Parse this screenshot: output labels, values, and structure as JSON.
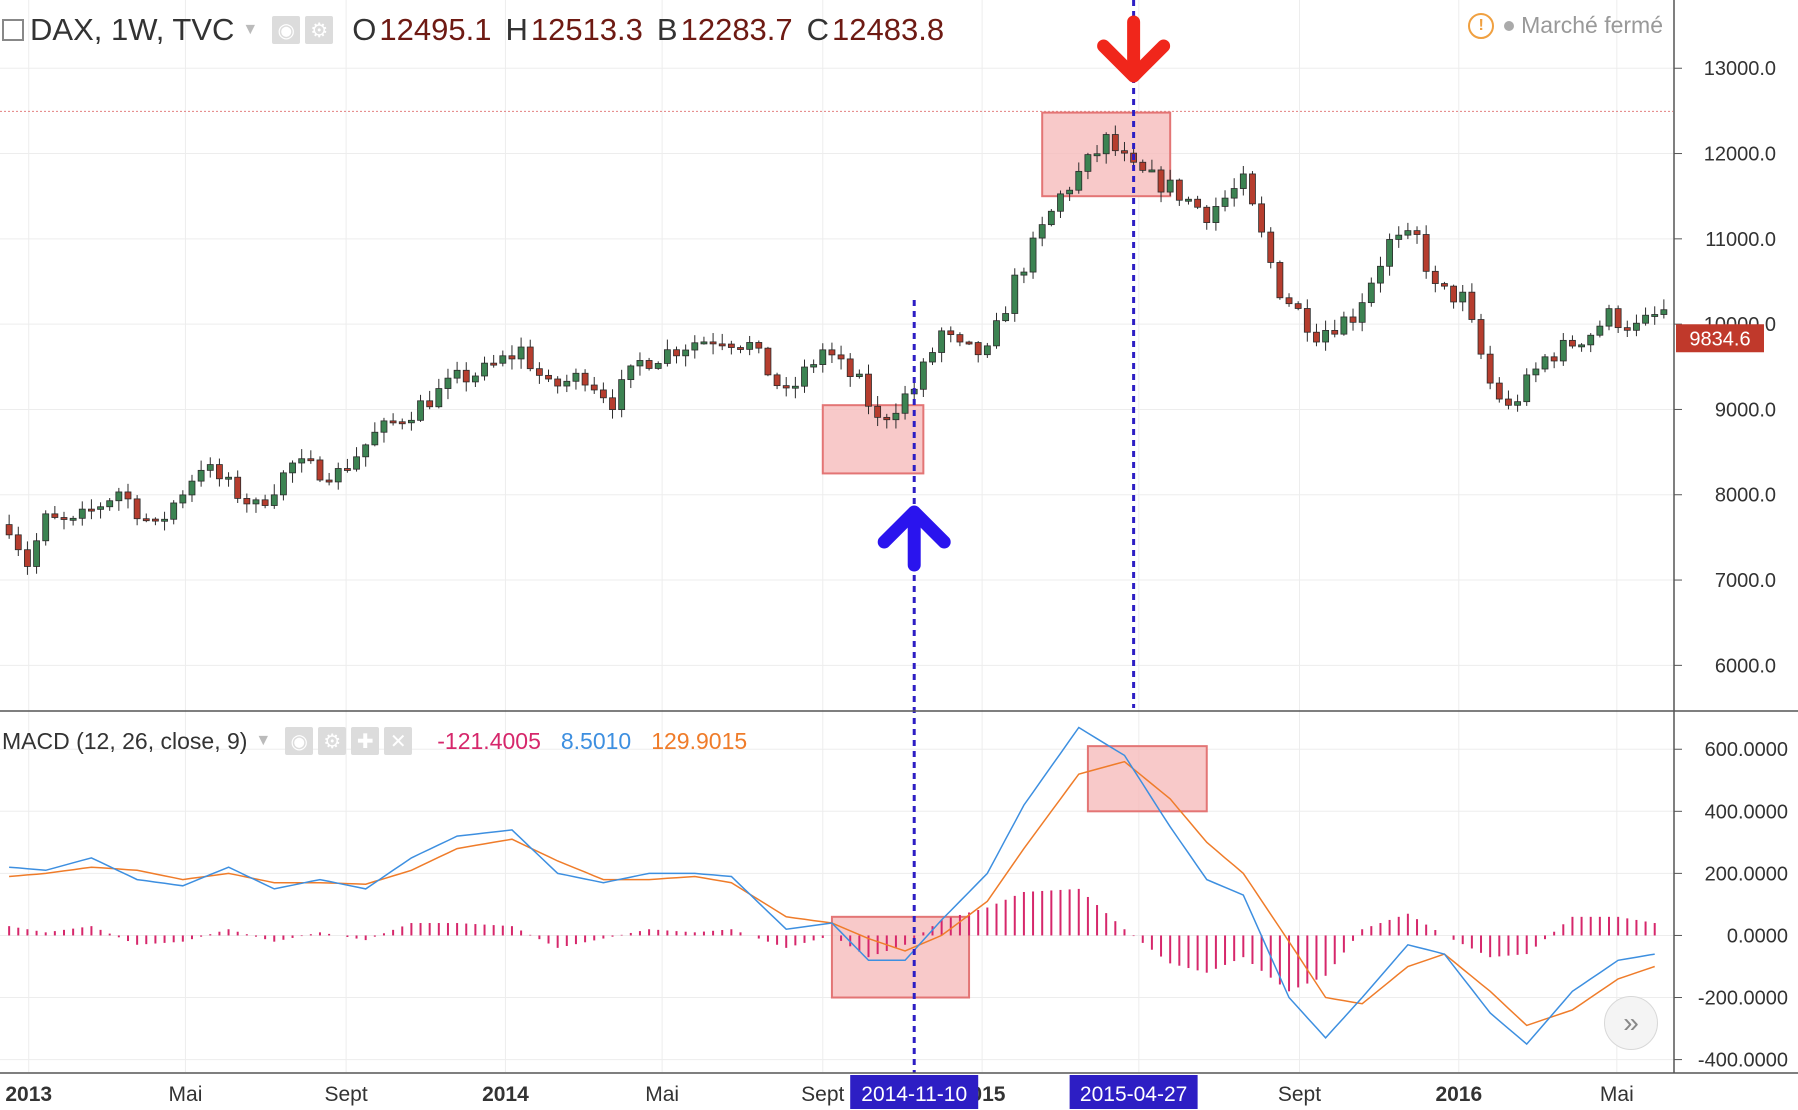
{
  "header": {
    "symbol": "DAX, 1W, TVC",
    "ohlc": [
      {
        "key": "O",
        "value": "12495.1"
      },
      {
        "key": "H",
        "value": "12513.3"
      },
      {
        "key": "B",
        "value": "12283.7"
      },
      {
        "key": "C",
        "value": "12483.8"
      }
    ],
    "status": "Marché fermé",
    "icons": [
      "square-icon",
      "chevron-down-icon",
      "eye-icon",
      "gear-icon",
      "warning-icon"
    ]
  },
  "macd_header": {
    "label": "MACD (12, 26, close, 9)",
    "values": [
      {
        "value": "-121.4005",
        "color": "#d6276b"
      },
      {
        "value": "8.5010",
        "color": "#3d8fe0"
      },
      {
        "value": "129.9015",
        "color": "#ef7c2a"
      }
    ],
    "icons": [
      "chevron-down-icon",
      "eye-icon",
      "gear-icon",
      "plus-icon",
      "close-icon"
    ]
  },
  "colors": {
    "up": "#3c8352",
    "down": "#b63d2e",
    "macd_line": "#3d8fe0",
    "signal_line": "#ef7c2a",
    "histogram": "#d6276b",
    "marker": "#2d1ec4",
    "zone_fill": "#f5b7b7",
    "zone_stroke": "#e37575",
    "buy_arrow": "#2a14ee",
    "sell_arrow": "#f0261b",
    "last_price": "#c0392b"
  },
  "chart_data": [
    {
      "type": "candlestick",
      "title": "DAX, 1W, TVC",
      "price_axis_ticks": [
        "13000.0",
        "12000.0",
        "11000.0",
        "10000.0",
        "9000.0",
        "8000.0",
        "7000.0",
        "6000.0"
      ],
      "ylim": [
        5500,
        13800
      ],
      "time_axis_labels": [
        "2013",
        "Mai",
        "Sept",
        "2014",
        "Mai",
        "Sept",
        "2015",
        "Mai",
        "Sept",
        "2016",
        "Mai"
      ],
      "last_price_label": "9834.6",
      "reference_level": 12495,
      "close_path": [
        [
          "2012-12-17",
          7650
        ],
        [
          "2012-12-31",
          7200
        ],
        [
          "2013-01-14",
          7700
        ],
        [
          "2013-02-04",
          7650
        ],
        [
          "2013-03-11",
          8050
        ],
        [
          "2013-04-08",
          7600
        ],
        [
          "2013-05-13",
          8350
        ],
        [
          "2013-06-24",
          7850
        ],
        [
          "2013-07-22",
          8350
        ],
        [
          "2013-08-26",
          8250
        ],
        [
          "2013-09-23",
          8700
        ],
        [
          "2013-10-28",
          9050
        ],
        [
          "2013-11-25",
          9350
        ],
        [
          "2013-12-16",
          9450
        ],
        [
          "2014-01-13",
          9700
        ],
        [
          "2014-02-03",
          9250
        ],
        [
          "2014-03-03",
          9400
        ],
        [
          "2014-03-24",
          9100
        ],
        [
          "2014-04-14",
          9550
        ],
        [
          "2014-05-26",
          9800
        ],
        [
          "2014-06-16",
          9850
        ],
        [
          "2014-07-07",
          9750
        ],
        [
          "2014-08-04",
          9150
        ],
        [
          "2014-09-01",
          9700
        ],
        [
          "2014-09-29",
          9300
        ],
        [
          "2014-10-13",
          8850
        ],
        [
          "2014-11-10",
          9250
        ],
        [
          "2014-12-01",
          9900
        ],
        [
          "2014-12-15",
          9700
        ],
        [
          "2015-01-05",
          9650
        ],
        [
          "2015-01-26",
          10500
        ],
        [
          "2015-03-02",
          11500
        ],
        [
          "2015-04-06",
          12150
        ],
        [
          "2015-04-27",
          11800
        ],
        [
          "2015-05-25",
          11600
        ],
        [
          "2015-06-22",
          11300
        ],
        [
          "2015-07-20",
          11650
        ],
        [
          "2015-08-17",
          10400
        ],
        [
          "2015-09-14",
          9900
        ],
        [
          "2015-10-12",
          10100
        ],
        [
          "2015-11-09",
          10950
        ],
        [
          "2015-11-30",
          11000
        ],
        [
          "2015-12-14",
          10400
        ],
        [
          "2016-01-04",
          10300
        ],
        [
          "2016-01-25",
          9300
        ],
        [
          "2016-02-08",
          9000
        ],
        [
          "2016-03-07",
          9600
        ],
        [
          "2016-04-11",
          9900
        ],
        [
          "2016-04-25",
          10100
        ],
        [
          "2016-05-16",
          9950
        ],
        [
          "2016-06-06",
          10150
        ]
      ],
      "markers": [
        {
          "date": "2014-11-10",
          "label": "2014-11-10",
          "signal": "buy"
        },
        {
          "date": "2015-04-27",
          "label": "2015-04-27",
          "signal": "sell"
        }
      ],
      "zones": [
        {
          "x": [
            "2014-09-01",
            "2014-11-17"
          ],
          "y": [
            8250,
            9050
          ]
        },
        {
          "x": [
            "2015-02-16",
            "2015-05-25"
          ],
          "y": [
            11500,
            12480
          ]
        }
      ]
    },
    {
      "type": "line",
      "title": "MACD (12, 26, close, 9)",
      "value_axis_ticks": [
        "600.0000",
        "400.0000",
        "200.0000",
        "0.0000",
        "-200.0000",
        "-400.0000"
      ],
      "ylim": [
        -440,
        720
      ],
      "macd_line": [
        [
          "2012-12-17",
          220
        ],
        [
          "2013-01-14",
          210
        ],
        [
          "2013-02-18",
          250
        ],
        [
          "2013-03-25",
          180
        ],
        [
          "2013-04-29",
          160
        ],
        [
          "2013-06-03",
          220
        ],
        [
          "2013-07-08",
          150
        ],
        [
          "2013-08-12",
          180
        ],
        [
          "2013-09-16",
          150
        ],
        [
          "2013-10-21",
          250
        ],
        [
          "2013-11-25",
          320
        ],
        [
          "2014-01-06",
          340
        ],
        [
          "2014-02-10",
          200
        ],
        [
          "2014-03-17",
          170
        ],
        [
          "2014-04-21",
          200
        ],
        [
          "2014-05-26",
          200
        ],
        [
          "2014-06-23",
          190
        ],
        [
          "2014-08-04",
          20
        ],
        [
          "2014-09-08",
          40
        ],
        [
          "2014-10-06",
          -80
        ],
        [
          "2014-11-03",
          -80
        ],
        [
          "2014-12-01",
          50
        ],
        [
          "2015-01-05",
          200
        ],
        [
          "2015-02-02",
          420
        ],
        [
          "2015-03-16",
          670
        ],
        [
          "2015-04-20",
          580
        ],
        [
          "2015-05-25",
          350
        ],
        [
          "2015-06-22",
          180
        ],
        [
          "2015-07-20",
          130
        ],
        [
          "2015-08-24",
          -200
        ],
        [
          "2015-09-21",
          -330
        ],
        [
          "2015-10-19",
          -200
        ],
        [
          "2015-11-23",
          -30
        ],
        [
          "2015-12-21",
          -60
        ],
        [
          "2016-01-25",
          -250
        ],
        [
          "2016-02-22",
          -350
        ],
        [
          "2016-03-28",
          -180
        ],
        [
          "2016-05-02",
          -80
        ],
        [
          "2016-05-30",
          -60
        ]
      ],
      "signal_line": [
        [
          "2012-12-17",
          190
        ],
        [
          "2013-01-14",
          200
        ],
        [
          "2013-02-18",
          220
        ],
        [
          "2013-03-25",
          210
        ],
        [
          "2013-04-29",
          180
        ],
        [
          "2013-06-03",
          200
        ],
        [
          "2013-07-08",
          170
        ],
        [
          "2013-08-12",
          170
        ],
        [
          "2013-09-16",
          165
        ],
        [
          "2013-10-21",
          210
        ],
        [
          "2013-11-25",
          280
        ],
        [
          "2014-01-06",
          310
        ],
        [
          "2014-02-10",
          240
        ],
        [
          "2014-03-17",
          180
        ],
        [
          "2014-04-21",
          180
        ],
        [
          "2014-05-26",
          190
        ],
        [
          "2014-06-23",
          170
        ],
        [
          "2014-08-04",
          60
        ],
        [
          "2014-09-08",
          40
        ],
        [
          "2014-10-06",
          -10
        ],
        [
          "2014-11-03",
          -50
        ],
        [
          "2014-12-01",
          0
        ],
        [
          "2015-01-05",
          110
        ],
        [
          "2015-02-02",
          280
        ],
        [
          "2015-03-16",
          520
        ],
        [
          "2015-04-20",
          560
        ],
        [
          "2015-05-25",
          440
        ],
        [
          "2015-06-22",
          300
        ],
        [
          "2015-07-20",
          200
        ],
        [
          "2015-08-24",
          -20
        ],
        [
          "2015-09-21",
          -200
        ],
        [
          "2015-10-19",
          -220
        ],
        [
          "2015-11-23",
          -100
        ],
        [
          "2015-12-21",
          -60
        ],
        [
          "2016-01-25",
          -180
        ],
        [
          "2016-02-22",
          -290
        ],
        [
          "2016-03-28",
          -240
        ],
        [
          "2016-05-02",
          -140
        ],
        [
          "2016-05-30",
          -100
        ]
      ],
      "zones": [
        {
          "x": [
            "2014-09-08",
            "2014-12-22"
          ],
          "y": [
            -200,
            60
          ]
        },
        {
          "x": [
            "2015-03-23",
            "2015-06-22"
          ],
          "y": [
            400,
            610
          ]
        }
      ]
    }
  ]
}
